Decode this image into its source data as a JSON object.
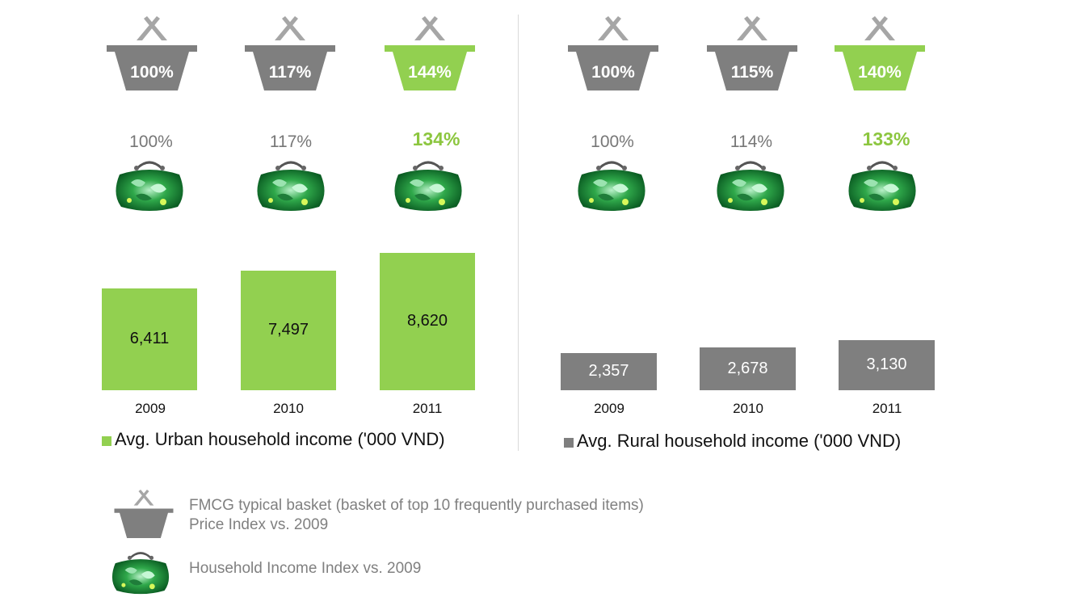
{
  "colors": {
    "urban_bar": "#92d050",
    "rural_bar": "#7f7f7f",
    "basket_gray": "#7f7f7f",
    "basket_highlight": "#92d050",
    "highlight_text": "#8cc63f",
    "index_text": "#777777"
  },
  "chart_data": [
    {
      "type": "bar",
      "categories": [
        "2009",
        "2010",
        "2011"
      ],
      "series": [
        {
          "name": "Avg. Urban household income ('000 VND)",
          "values": [
            6411,
            7497,
            8620
          ]
        }
      ],
      "value_labels": [
        "6,411",
        "7,497",
        "8,620"
      ],
      "price_index_labels": [
        "100%",
        "117%",
        "144%"
      ],
      "income_index_labels": [
        "100%",
        "117%",
        "134%"
      ],
      "ylim": [
        0,
        8620
      ]
    },
    {
      "type": "bar",
      "categories": [
        "2009",
        "2010",
        "2011"
      ],
      "series": [
        {
          "name": "Avg. Rural household income ('000 VND)",
          "values": [
            2357,
            2678,
            3130
          ]
        }
      ],
      "value_labels": [
        "2,357",
        "2,678",
        "3,130"
      ],
      "price_index_labels": [
        "100%",
        "115%",
        "140%"
      ],
      "income_index_labels": [
        "100%",
        "114%",
        "133%"
      ],
      "ylim": [
        0,
        8620
      ]
    }
  ],
  "key": {
    "basket_line1": "FMCG typical basket (basket of top 10 frequently purchased items)",
    "basket_line2": "Price Index vs. 2009",
    "purse_text": "Household Income Index vs. 2009",
    "basket_icon": "shopping-basket-icon",
    "purse_icon": "coin-purse-icon"
  }
}
